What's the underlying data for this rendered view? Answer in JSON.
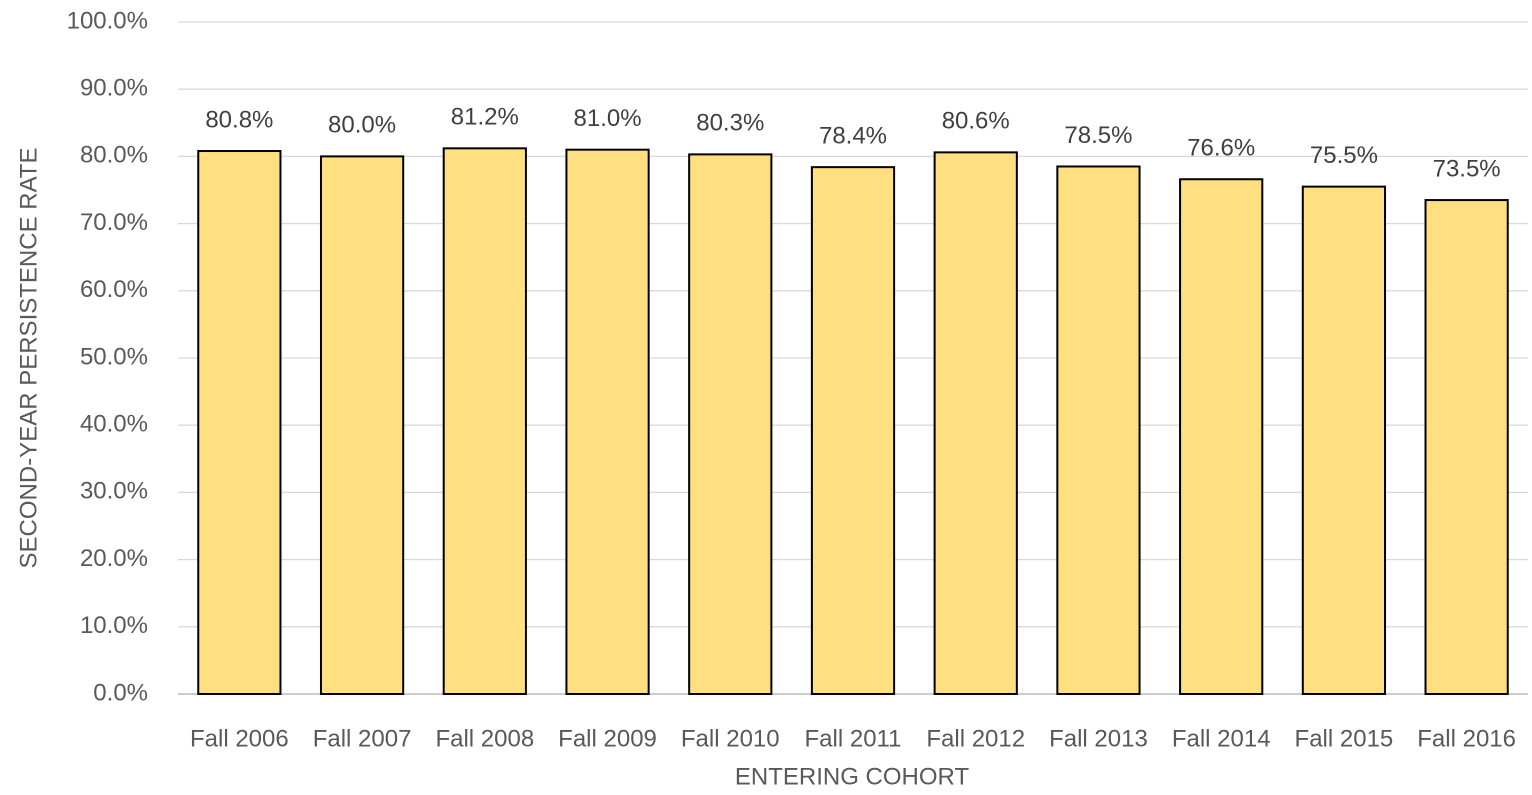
{
  "chart_data": {
    "type": "bar",
    "x_label": "ENTERING COHORT",
    "y_label": "SECOND-YEAR PERSISTENCE RATE",
    "categories": [
      "Fall 2006",
      "Fall 2007",
      "Fall 2008",
      "Fall 2009",
      "Fall 2010",
      "Fall 2011",
      "Fall 2012",
      "Fall 2013",
      "Fall 2014",
      "Fall 2015",
      "Fall 2016"
    ],
    "values": [
      80.8,
      80.0,
      81.2,
      81.0,
      80.3,
      78.4,
      80.6,
      78.5,
      76.6,
      75.5,
      73.5
    ],
    "value_labels": [
      "80.8%",
      "80.0%",
      "81.2%",
      "81.0%",
      "80.3%",
      "78.4%",
      "80.6%",
      "78.5%",
      "76.6%",
      "75.5%",
      "73.5%"
    ],
    "color": "#ffdf80",
    "ylim": [
      0,
      100
    ],
    "yticks": [
      {
        "value": 0,
        "label": "0.0%"
      },
      {
        "value": 10,
        "label": "10.0%"
      },
      {
        "value": 20,
        "label": "20.0%"
      },
      {
        "value": 30,
        "label": "30.0%"
      },
      {
        "value": 40,
        "label": "40.0%"
      },
      {
        "value": 50,
        "label": "50.0%"
      },
      {
        "value": 60,
        "label": "60.0%"
      },
      {
        "value": 70,
        "label": "70.0%"
      },
      {
        "value": 80,
        "label": "80.0%"
      },
      {
        "value": 90,
        "label": "90.0%"
      },
      {
        "value": 100,
        "label": "100.0%"
      }
    ],
    "grid": true
  }
}
